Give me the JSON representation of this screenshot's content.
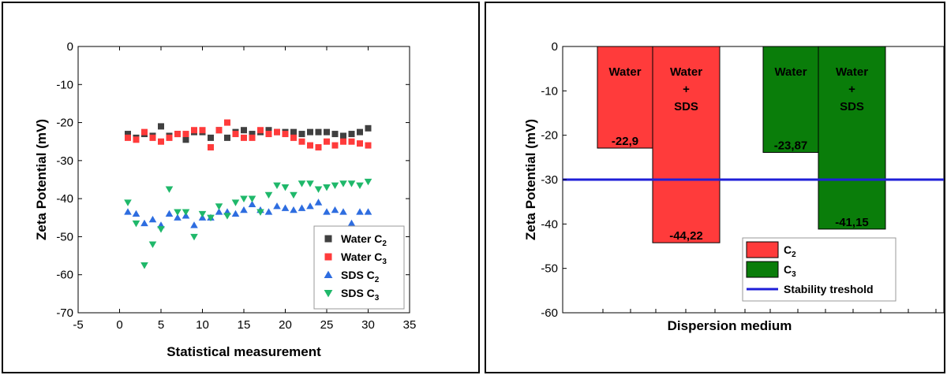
{
  "chart_data": [
    {
      "type": "scatter",
      "xlabel": "Statistical measurement",
      "ylabel": "Zeta Potential (mV)",
      "xlim": [
        -5,
        35
      ],
      "ylim": [
        -70,
        0
      ],
      "xticks": [
        -5,
        0,
        5,
        10,
        15,
        20,
        25,
        30,
        35
      ],
      "yticks": [
        0,
        -10,
        -20,
        -30,
        -40,
        -50,
        -60,
        -70
      ],
      "legend_position": "bottom-right",
      "series": [
        {
          "name": "Water C",
          "sub": "2",
          "marker": "square",
          "color": "#404040",
          "x": [
            1,
            2,
            3,
            4,
            5,
            6,
            7,
            8,
            9,
            10,
            11,
            12,
            13,
            14,
            15,
            16,
            17,
            18,
            19,
            20,
            21,
            22,
            23,
            24,
            25,
            26,
            27,
            28,
            29,
            30
          ],
          "values": [
            -23,
            -24,
            -23,
            -23.5,
            -21,
            -23.5,
            -23,
            -24.5,
            -22.5,
            -22.5,
            -24,
            -22,
            -24,
            -22.5,
            -22,
            -23,
            -22.5,
            -22,
            -22.5,
            -22.5,
            -22.5,
            -23,
            -22.5,
            -22.5,
            -22.5,
            -23,
            -23.5,
            -23,
            -22.5,
            -21.5
          ]
        },
        {
          "name": "Water C",
          "sub": "3",
          "marker": "square",
          "color": "#ff3b3b",
          "x": [
            1,
            2,
            3,
            4,
            5,
            6,
            7,
            8,
            9,
            10,
            11,
            12,
            13,
            14,
            15,
            16,
            17,
            18,
            19,
            20,
            21,
            22,
            23,
            24,
            25,
            26,
            27,
            28,
            29,
            30
          ],
          "values": [
            -24,
            -24.5,
            -22.5,
            -24,
            -25,
            -24,
            -23,
            -23,
            -22,
            -22,
            -26.5,
            -22,
            -20,
            -23,
            -24,
            -24,
            -22,
            -23,
            -22.5,
            -23,
            -24,
            -25,
            -26,
            -26.5,
            -25,
            -26,
            -25,
            -25,
            -25.5,
            -26
          ]
        },
        {
          "name": "SDS C",
          "sub": "2",
          "marker": "triangle-up",
          "color": "#2e6de0",
          "x": [
            1,
            2,
            3,
            4,
            5,
            6,
            7,
            8,
            9,
            10,
            11,
            12,
            13,
            14,
            15,
            16,
            17,
            18,
            19,
            20,
            21,
            22,
            23,
            24,
            25,
            26,
            27,
            28,
            29,
            30
          ],
          "values": [
            -43.5,
            -44,
            -46.5,
            -45.5,
            -47,
            -44,
            -45,
            -44.5,
            -47,
            -45,
            -45,
            -43.5,
            -43.5,
            -44,
            -43,
            -41.5,
            -43,
            -43.5,
            -42,
            -42.5,
            -43,
            -42.5,
            -42,
            -41,
            -43.5,
            -43,
            -43.5,
            -46.5,
            -43.5,
            -43.5
          ]
        },
        {
          "name": "SDS C",
          "sub": "3",
          "marker": "triangle-down",
          "color": "#1fb86a",
          "x": [
            1,
            2,
            3,
            4,
            5,
            6,
            7,
            8,
            9,
            10,
            11,
            12,
            13,
            14,
            15,
            16,
            17,
            18,
            19,
            20,
            21,
            22,
            23,
            24,
            25,
            26,
            27,
            28,
            29,
            30
          ],
          "values": [
            -41,
            -46.5,
            -57.5,
            -52,
            -48,
            -37.5,
            -43.5,
            -43.5,
            -50,
            -44,
            -45,
            -42,
            -44.5,
            -41,
            -40,
            -40,
            -43.5,
            -39,
            -36.5,
            -37,
            -39,
            -36,
            -36,
            -37.5,
            -37,
            -36.5,
            -36,
            -36,
            -36.5,
            -35.5
          ]
        }
      ]
    },
    {
      "type": "bar",
      "xlabel": "Dispersion medium",
      "ylabel": "Zeta Potential (mV)",
      "ylim": [
        -60,
        0
      ],
      "yticks": [
        0,
        -10,
        -20,
        -30,
        -40,
        -50,
        -60
      ],
      "legend_position": "bottom-right",
      "threshold": {
        "label": "Stability treshold",
        "value": -30,
        "color": "#1f1fd8"
      },
      "legend": [
        {
          "label": "C",
          "sub": "2",
          "color": "#ff3b3b"
        },
        {
          "label": "C",
          "sub": "3",
          "color": "#0a7d0a"
        }
      ],
      "bars": [
        {
          "group": "C2",
          "medium": [
            "Water"
          ],
          "value": -22.9,
          "value_label": "-22,9",
          "color": "#ff3b3b"
        },
        {
          "group": "C2",
          "medium": [
            "Water",
            "+",
            "SDS"
          ],
          "value": -44.22,
          "value_label": "-44,22",
          "color": "#ff3b3b"
        },
        {
          "group": "C3",
          "medium": [
            "Water"
          ],
          "value": -23.87,
          "value_label": "-23,87",
          "color": "#0a7d0a"
        },
        {
          "group": "C3",
          "medium": [
            "Water",
            "+",
            "SDS"
          ],
          "value": -41.15,
          "value_label": "-41,15",
          "color": "#0a7d0a"
        }
      ]
    }
  ]
}
